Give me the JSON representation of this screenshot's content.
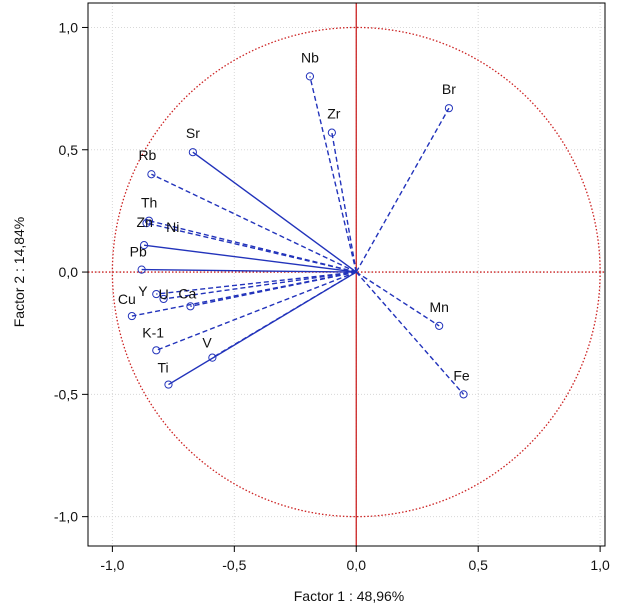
{
  "chart_data": {
    "type": "scatter",
    "subtype": "pca-loadings-plot",
    "xlabel": "Factor 1 : 48,96%",
    "ylabel": "Factor 2 : 14,84%",
    "xlim": [
      -1.1,
      1.02
    ],
    "ylim": [
      -1.12,
      1.1
    ],
    "xticks": [
      -1.0,
      -0.5,
      0.0,
      0.5,
      1.0
    ],
    "yticks": [
      1.0,
      0.5,
      0.0,
      -0.5,
      -1.0
    ],
    "xtick_labels": [
      "-1,0",
      "-0,5",
      "0,0",
      "0,5",
      "1,0"
    ],
    "ytick_labels": [
      "1,0",
      "0,5",
      "0,0",
      "-0,5",
      "-1,0"
    ],
    "grid": true,
    "unit_circle": true,
    "colors": {
      "vector": "#2233bb",
      "circle": "#cc2222",
      "axes_cross": "#cc2222",
      "grid": "#d8d8d8"
    },
    "points": [
      {
        "label": "Nb",
        "x": -0.19,
        "y": 0.8,
        "line": "dashed"
      },
      {
        "label": "Br",
        "x": 0.38,
        "y": 0.67,
        "line": "dashed"
      },
      {
        "label": "Zr",
        "x": -0.1,
        "y": 0.57,
        "line": "dashed"
      },
      {
        "label": "Sr",
        "x": -0.67,
        "y": 0.49,
        "line": "solid"
      },
      {
        "label": "Rb",
        "x": -0.84,
        "y": 0.4,
        "line": "dashed"
      },
      {
        "label": "Th",
        "x": -0.85,
        "y": 0.21,
        "line": "dashed"
      },
      {
        "label": "Zn",
        "x": -0.86,
        "y": 0.2,
        "line": "dashed"
      },
      {
        "label": "Ni",
        "x": -0.87,
        "y": 0.11,
        "line": "solid"
      },
      {
        "label": "Pb",
        "x": -0.88,
        "y": 0.01,
        "line": "solid"
      },
      {
        "label": "Y",
        "x": -0.82,
        "y": -0.09,
        "line": "dashed"
      },
      {
        "label": "U",
        "x": -0.79,
        "y": -0.11,
        "line": "dashed"
      },
      {
        "label": "Ca",
        "x": -0.68,
        "y": -0.14,
        "line": "dashed"
      },
      {
        "label": "Cu",
        "x": -0.92,
        "y": -0.18,
        "line": "dashed"
      },
      {
        "label": "K-1",
        "x": -0.82,
        "y": -0.32,
        "line": "dashed"
      },
      {
        "label": "V",
        "x": -0.59,
        "y": -0.35,
        "line": "dashed"
      },
      {
        "label": "Ti",
        "x": -0.77,
        "y": -0.46,
        "line": "solid"
      },
      {
        "label": "Mn",
        "x": 0.34,
        "y": -0.22,
        "line": "dashed"
      },
      {
        "label": "Fe",
        "x": 0.44,
        "y": -0.5,
        "line": "dashed"
      }
    ]
  }
}
